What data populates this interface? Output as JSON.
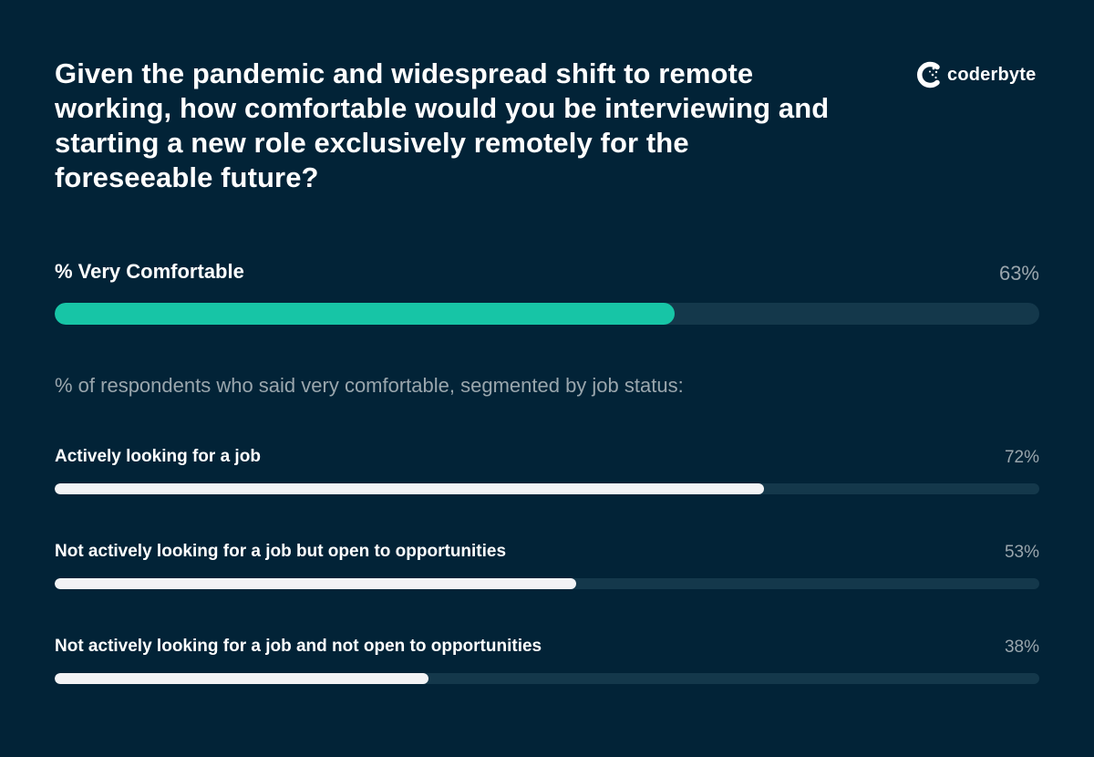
{
  "chart_data": {
    "type": "bar",
    "title": "Given the pandemic and widespread shift to remote working, how comfortable would you be interviewing and starting a new role exclusively remotely for the foreseeable future?",
    "primary": {
      "label": "% Very Comfortable",
      "value": 63,
      "value_label": "63%",
      "color": "#17c5a6"
    },
    "segment_caption": "% of respondents who said very comfortable, segmented by job status:",
    "categories": [
      "Actively looking for a job",
      "Not actively looking for a job but open to opportunities",
      "Not actively looking for a job and not open to opportunities"
    ],
    "values": [
      72,
      53,
      38
    ],
    "value_labels": [
      "72%",
      "53%",
      "38%"
    ],
    "segment_color": "#f2f3f5",
    "track_color": "#14384b",
    "xlim": [
      0,
      100
    ]
  },
  "brand": {
    "name": "coderbyte",
    "icon": "coderbyte-logo-icon"
  }
}
